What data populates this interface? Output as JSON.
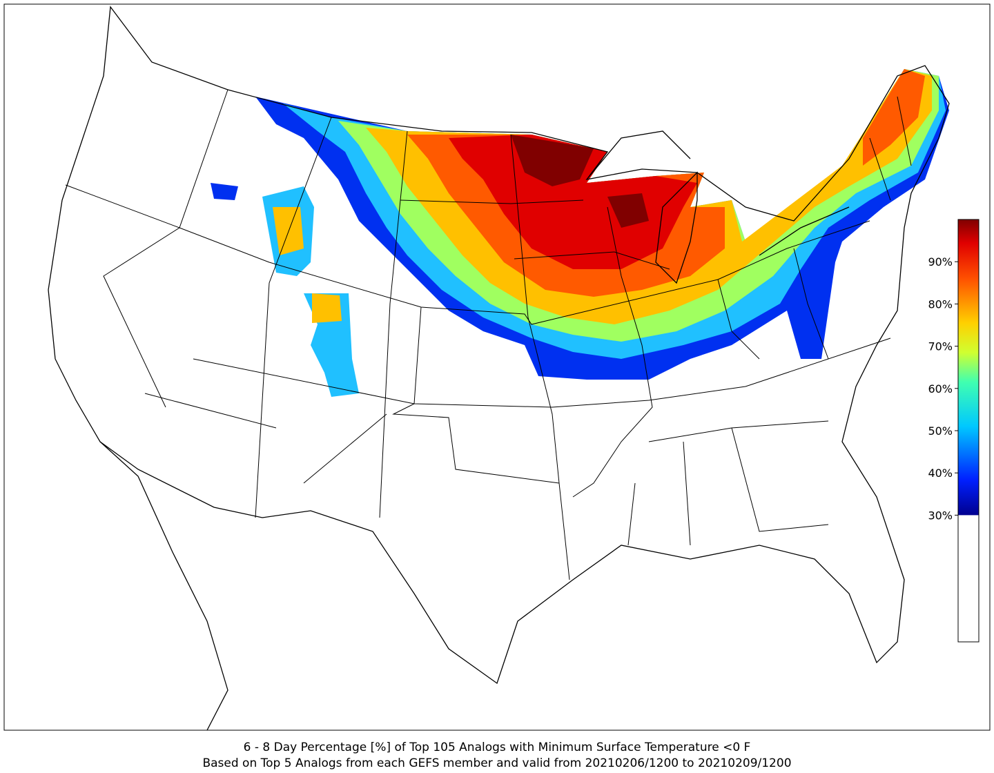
{
  "caption": {
    "line1": "6 - 8 Day Percentage [%] of Top 105 Analogs with Minimum Surface Temperature <0 F",
    "line2": "Based on Top 5 Analogs from each GEFS member and valid from 20210206/1200 to 20210209/1200"
  },
  "colorbar": {
    "lim": [
      0,
      100
    ],
    "threshold": 30,
    "ticks": [
      {
        "value": 30,
        "label": "30%"
      },
      {
        "value": 40,
        "label": "40%"
      },
      {
        "value": 50,
        "label": "50%"
      },
      {
        "value": 60,
        "label": "60%"
      },
      {
        "value": 70,
        "label": "70%"
      },
      {
        "value": 80,
        "label": "80%"
      },
      {
        "value": 90,
        "label": "90%"
      }
    ]
  }
}
